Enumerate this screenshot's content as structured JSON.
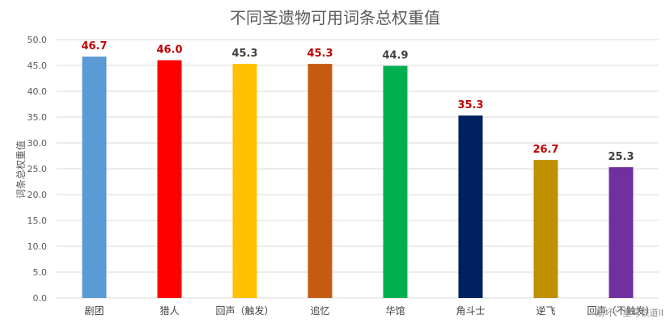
{
  "chart_data": {
    "type": "bar",
    "title": "不同圣遗物可用词条总权重值",
    "ylabel": "词条总权重值",
    "xlabel": "",
    "ylim": [
      0,
      50
    ],
    "y_ticks": [
      "0.0",
      "5.0",
      "10.0",
      "15.0",
      "20.0",
      "25.0",
      "30.0",
      "35.0",
      "40.0",
      "45.0",
      "50.0"
    ],
    "grid": true,
    "categories": [
      "剧团",
      "猎人",
      "回声（触发）",
      "追忆",
      "华馆",
      "角斗士",
      "逆飞",
      "回声（不触发）"
    ],
    "values": [
      46.7,
      46.0,
      45.3,
      45.3,
      44.9,
      35.3,
      26.7,
      25.3
    ],
    "value_labels": [
      "46.7",
      "46.0",
      "45.3",
      "45.3",
      "44.9",
      "35.3",
      "26.7",
      "25.3"
    ],
    "bar_colors": [
      "#5B9BD5",
      "#FF0000",
      "#FFC000",
      "#C55A11",
      "#00B050",
      "#002060",
      "#BF9000",
      "#7030A0"
    ],
    "label_colors": [
      "#C00000",
      "#C00000",
      "#404040",
      "#C00000",
      "#404040",
      "#C00000",
      "#C00000",
      "#404040"
    ]
  },
  "watermark": "崩坏：星穹铁道II"
}
